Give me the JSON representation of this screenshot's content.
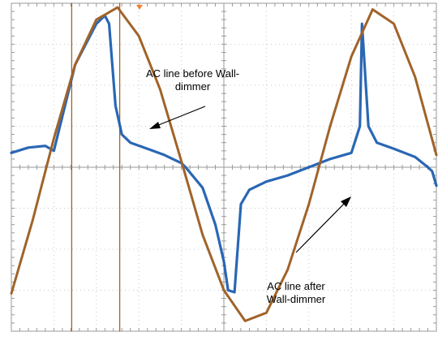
{
  "chart_data": {
    "type": "line",
    "title": "",
    "xlabel": "",
    "ylabel": "",
    "grid": true,
    "grid_divisions": {
      "x": 10,
      "y": 8
    },
    "xlim": [
      0,
      10
    ],
    "ylim": [
      -4,
      4
    ],
    "series": [
      {
        "color": "#a0632a",
        "x": [
          0,
          0.5,
          1.0,
          1.5,
          2.0,
          2.5,
          3.0,
          3.5,
          4.0,
          4.5,
          5.0,
          5.5,
          6.0,
          6.5,
          7.0,
          7.5,
          8.0,
          8.5,
          9.0,
          9.5,
          10.0
        ],
        "y": [
          -3.08,
          -1.3,
          0.7,
          2.5,
          3.6,
          3.9,
          3.2,
          1.9,
          0.15,
          -1.65,
          -3.0,
          -3.75,
          -3.55,
          -2.5,
          -0.9,
          1.0,
          2.7,
          3.85,
          3.5,
          2.2,
          0.3
        ]
      },
      {
        "color": "#1f5fb0",
        "x": [
          0,
          0.4,
          0.8,
          1.0,
          1.5,
          2.0,
          2.2,
          2.3,
          2.45,
          2.6,
          2.8,
          3.2,
          3.6,
          4.0,
          4.1,
          4.5,
          4.8,
          5.0,
          5.1,
          5.25,
          5.4,
          5.6,
          6.0,
          6.5,
          7.0,
          7.5,
          8.0,
          8.2,
          8.25,
          8.4,
          8.6,
          9.0,
          9.5,
          9.8,
          9.9,
          10.0
        ],
        "y": [
          0.35,
          0.48,
          0.52,
          0.4,
          2.5,
          3.5,
          3.7,
          3.5,
          1.5,
          0.8,
          0.6,
          0.45,
          0.3,
          0.1,
          0.0,
          -0.5,
          -1.4,
          -2.3,
          -3.0,
          -3.05,
          -0.9,
          -0.55,
          -0.35,
          -0.2,
          0.0,
          0.2,
          0.35,
          1.0,
          3.5,
          1.0,
          0.6,
          0.45,
          0.25,
          0.0,
          -0.1,
          -0.45
        ]
      },
      {
        "color": "#a0632a",
        "x": [
          1.42,
          1.42
        ],
        "y": [
          -4,
          4
        ]
      },
      {
        "color": "#a0632a",
        "x": [
          2.55,
          2.55
        ],
        "y": [
          -4,
          4
        ]
      }
    ],
    "annotations": [
      {
        "text": "AC line before Wall-\ndimmer"
      },
      {
        "text": "AC line  after\nWall-dimmer"
      }
    ]
  }
}
